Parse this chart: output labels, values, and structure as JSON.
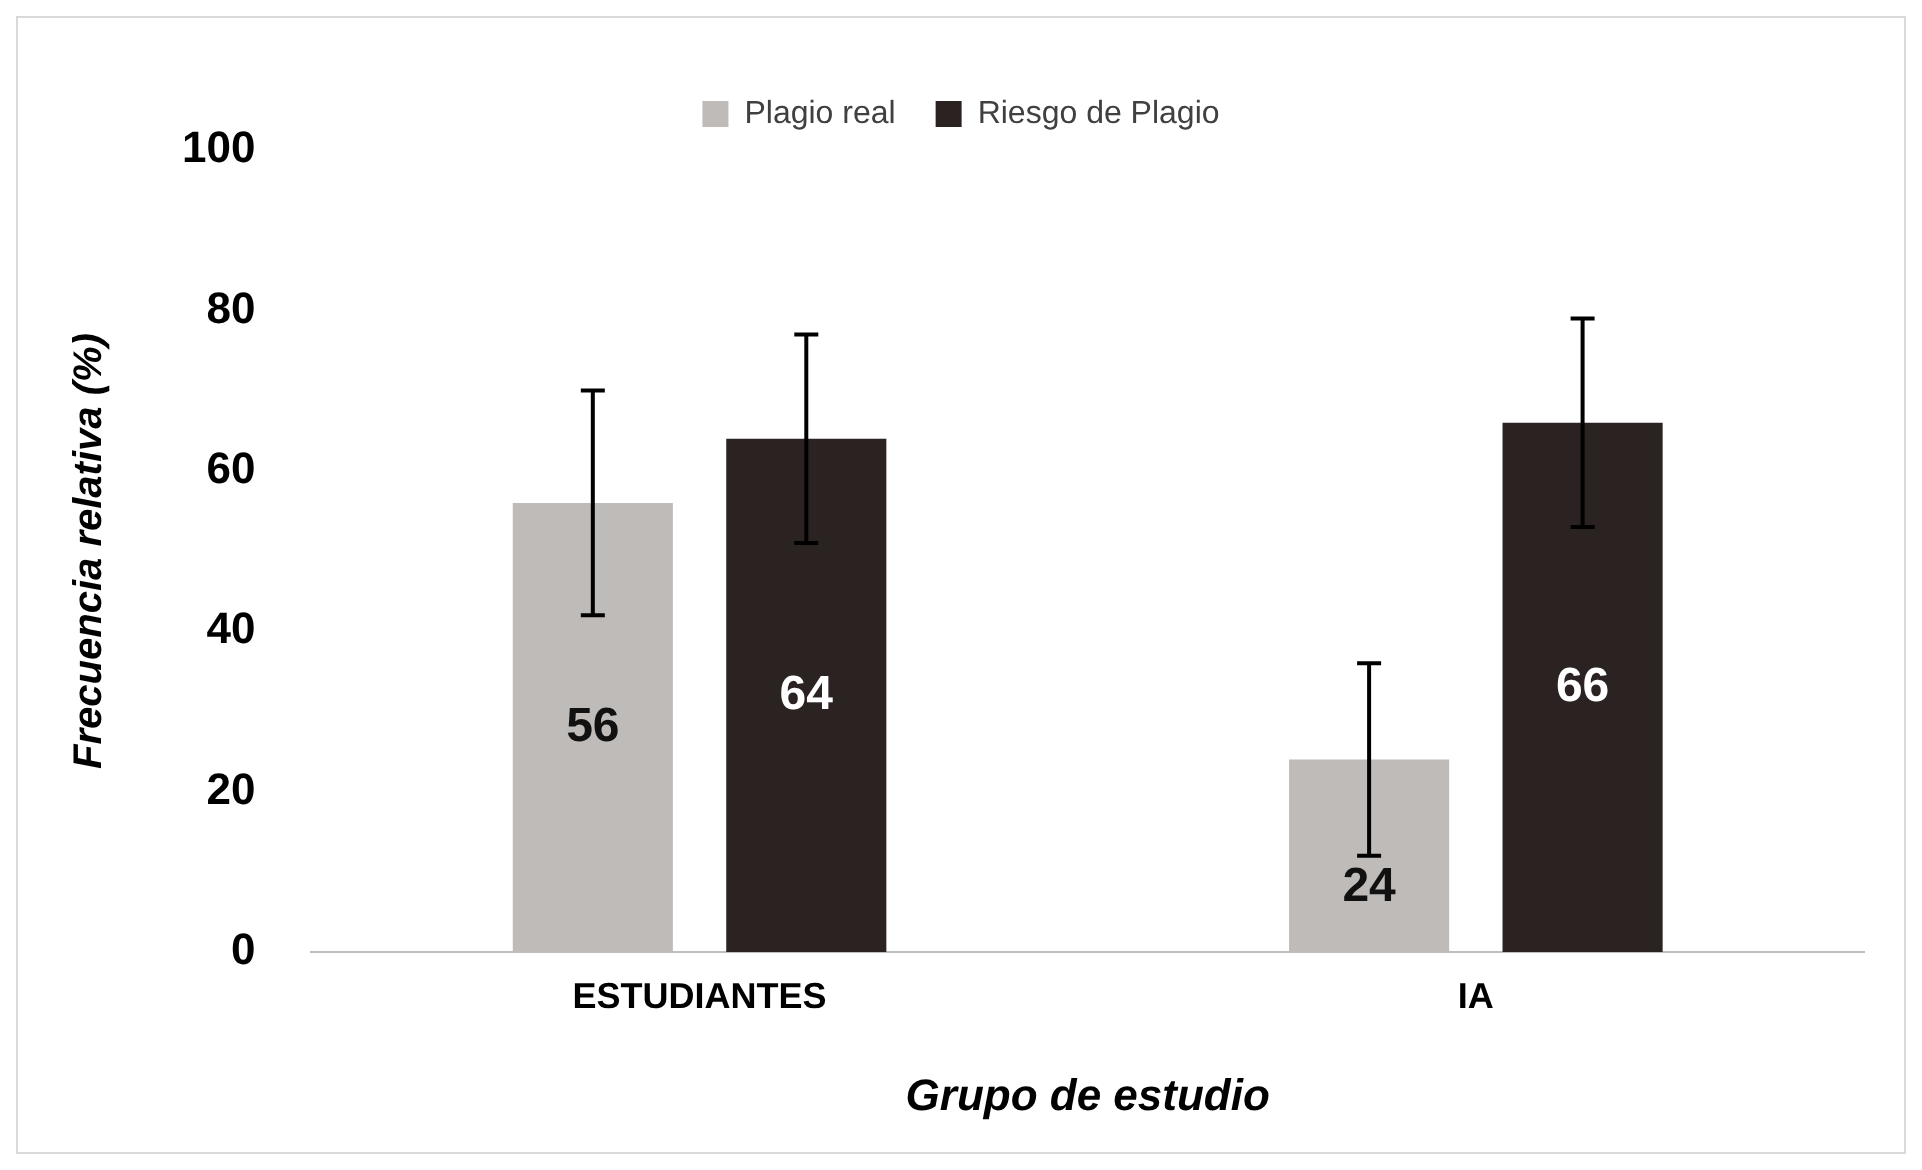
{
  "chart_data": {
    "type": "bar",
    "xlabel": "Grupo de estudio",
    "ylabel": "Frecuencia relativa (%)",
    "categories": [
      "ESTUDIANTES",
      "IA"
    ],
    "series": [
      {
        "name": "Plagio real",
        "color": "#bfbbb8",
        "values": [
          56,
          24
        ],
        "errors": [
          14,
          12
        ]
      },
      {
        "name": "Riesgo de Plagio",
        "color": "#2b2322",
        "values": [
          64,
          66
        ],
        "errors": [
          13,
          13
        ]
      }
    ],
    "ylim": [
      0,
      100
    ],
    "yticks": [
      0,
      20,
      40,
      60,
      80,
      100
    ],
    "grid": false,
    "legend": "top",
    "data_labels": true
  }
}
